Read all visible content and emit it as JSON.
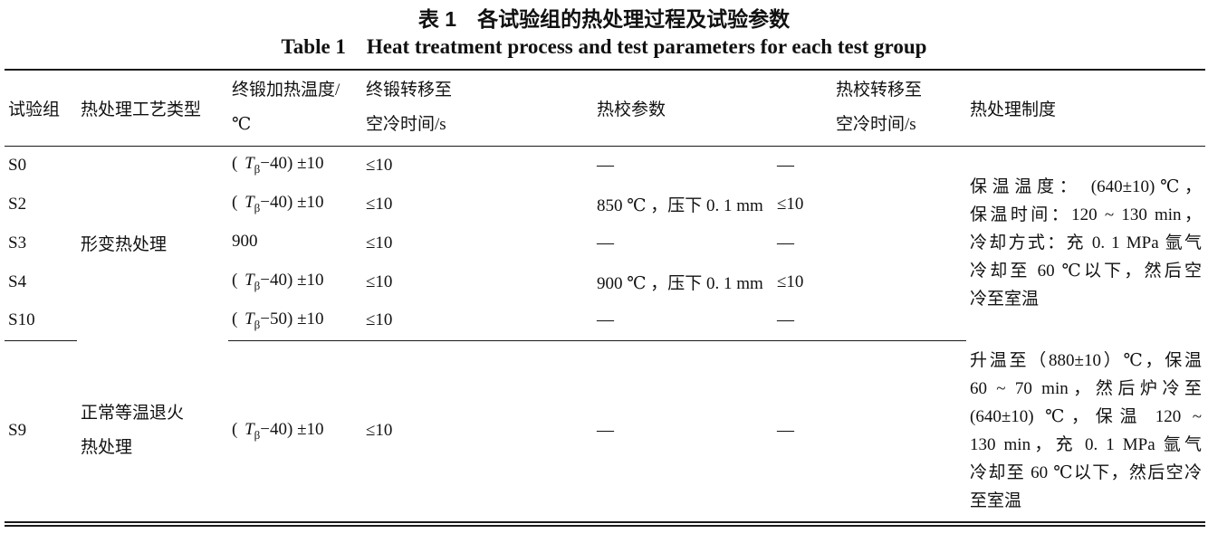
{
  "title": {
    "zh": "表 1　各试验组的热处理过程及试验参数",
    "en": "Table 1　Heat treatment process and test parameters for each test group"
  },
  "table": {
    "headers": {
      "group": "试验组",
      "process_type": "热处理工艺类型",
      "forge_temp_line1": "终锻加热温度/",
      "forge_temp_line2": "℃",
      "forge_transfer_line1": "终锻转移至",
      "forge_transfer_line2": "空冷时间/s",
      "sizing_params": "热校参数",
      "sizing_transfer_line1": "热校转移至",
      "sizing_transfer_line2": "空冷时间/s",
      "regime": "热处理制度"
    },
    "group1": {
      "process_type": "形变热处理",
      "regime_lines": {
        "l0": "保温温度： (640±10)℃，",
        "l1": "保温时间：120 ~ 130 min，",
        "l2": "冷却方式：充 0. 1 MPa 氩气",
        "l3": "冷却至 60 ℃以下，然后空",
        "l4": "冷至室温"
      },
      "rows": [
        {
          "id": "S0",
          "temp_pre": "( ",
          "temp_var": "T",
          "temp_sub": "β",
          "temp_post": "−40) ±10",
          "transfer": "≤10",
          "sizing": "—",
          "sizing_transfer": "—"
        },
        {
          "id": "S2",
          "temp_pre": "( ",
          "temp_var": "T",
          "temp_sub": "β",
          "temp_post": "−40) ±10",
          "transfer": "≤10",
          "sizing": "850 ℃ ，压下 0. 1 mm",
          "sizing_transfer": "≤10"
        },
        {
          "id": "S3",
          "temp_pre": "900",
          "temp_var": "",
          "temp_sub": "",
          "temp_post": "",
          "transfer": "≤10",
          "sizing": "—",
          "sizing_transfer": "—"
        },
        {
          "id": "S4",
          "temp_pre": "( ",
          "temp_var": "T",
          "temp_sub": "β",
          "temp_post": "−40) ±10",
          "transfer": "≤10",
          "sizing": "900 ℃ ，压下 0. 1 mm",
          "sizing_transfer": "≤10"
        },
        {
          "id": "S10",
          "temp_pre": "( ",
          "temp_var": "T",
          "temp_sub": "β",
          "temp_post": "−50) ±10",
          "transfer": "≤10",
          "sizing": "—",
          "sizing_transfer": "—"
        }
      ]
    },
    "group2": {
      "row": {
        "id": "S9",
        "process_type_line1": "正常等温退火",
        "process_type_line2": "热处理",
        "temp_pre": "( ",
        "temp_var": "T",
        "temp_sub": "β",
        "temp_post": "−40) ±10",
        "transfer": "≤10",
        "sizing": "—",
        "sizing_transfer": "—"
      },
      "regime_lines": {
        "l0": "升温至（880±10）℃，保温",
        "l1": "60 ~ 70 min，然后炉冷至",
        "l2": "(640±10) ℃，保温 120 ~",
        "l3": "130 min，充 0. 1 MPa 氩气",
        "l4": "冷却至 60 ℃以下，然后空冷",
        "l5": "至室温"
      }
    }
  }
}
